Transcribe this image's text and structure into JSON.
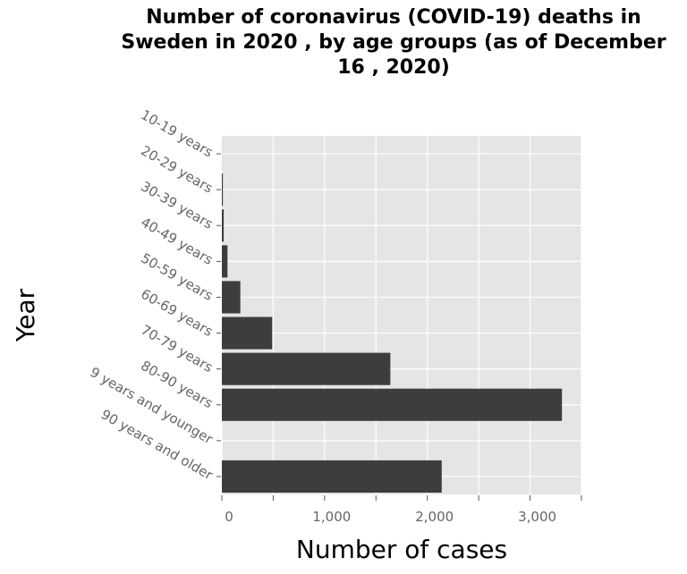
{
  "chart_data": {
    "type": "bar",
    "orientation": "horizontal",
    "title": "Number of coronavirus (COVID-19) deaths in Sweden in 2020 , by age groups (as of December 16 , 2020)",
    "xlabel": "Number of cases",
    "ylabel": "Year",
    "categories": [
      "10-19 years",
      "20-29 years",
      "30-39 years",
      "40-49 years",
      "50-59 years",
      "60-69 years",
      "70-79 years",
      "80-90 years",
      "9 years and younger",
      "90 years and older"
    ],
    "values": [
      1,
      10,
      18,
      55,
      180,
      490,
      1640,
      3310,
      0,
      2140
    ],
    "xlim": [
      0,
      3500
    ],
    "xticks": [
      0,
      1000,
      2000,
      3000
    ],
    "xtick_labels": [
      "0",
      "1,000",
      "2,000",
      "3,000"
    ],
    "grid": true,
    "bar_color": "#3d3d3d",
    "panel_color": "#e5e5e5"
  }
}
